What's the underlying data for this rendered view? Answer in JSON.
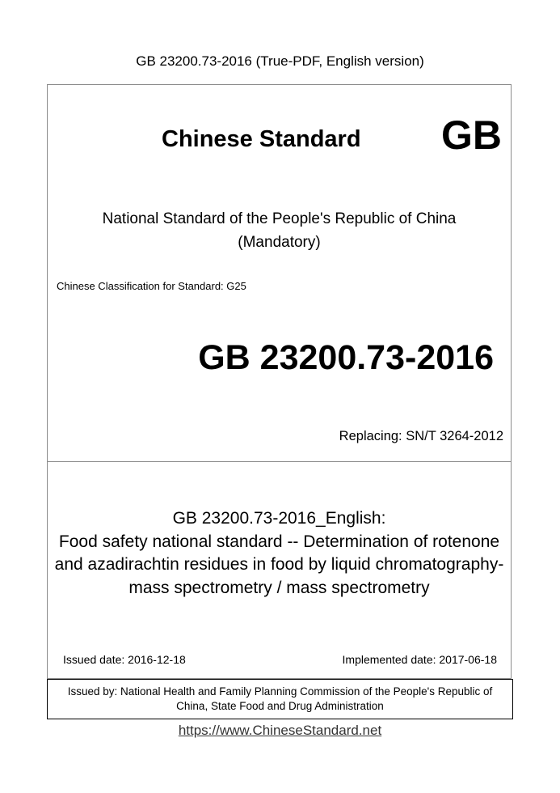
{
  "header": {
    "title_line": "GB 23200.73-2016 (True-PDF, English version)"
  },
  "cover": {
    "title": "Chinese Standard",
    "logo_text": "GB",
    "national_line1": "National Standard of the People's Republic of China",
    "national_line2": "(Mandatory)",
    "classification": "Chinese Classification for Standard: G25",
    "standard_number": "GB 23200.73-2016",
    "replacing": "Replacing: SN/T 3264-2012",
    "doc_title_lines": [
      "GB 23200.73-2016_English:",
      "Food safety national standard -- Determination of rotenone",
      "and azadirachtin residues in food by liquid chromatography-",
      "mass spectrometry / mass spectrometry"
    ],
    "issued_date": "Issued date: 2016-12-18",
    "implemented_date": "Implemented date: 2017-06-18",
    "issued_by_line1": "Issued by: National Health and Family Planning Commission of the People's Republic of",
    "issued_by_line2": "China, State Food and Drug Administration"
  },
  "footer": {
    "url": "https://www.ChineseStandard.net"
  }
}
